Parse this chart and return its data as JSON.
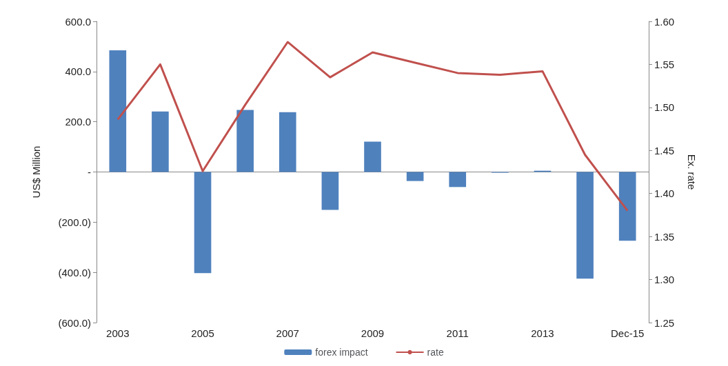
{
  "chart_data": {
    "type": "bar",
    "ylabel": "US$ Million",
    "y2label": "Ex. rate",
    "categories": [
      "2003",
      null,
      "2005",
      null,
      "2007",
      null,
      "2009",
      null,
      "2011",
      null,
      "2013",
      null,
      "Dec-15"
    ],
    "series": [
      {
        "name": "forex impact",
        "color": "#4f81bd",
        "values": [
          485,
          241,
          -403,
          247,
          238,
          -151,
          121,
          -36,
          -60,
          -3,
          5,
          -425,
          -274
        ]
      },
      {
        "name": "rate",
        "type": "line",
        "axis": "y2",
        "color": "#c0504d",
        "marker": "none",
        "values": [
          1.486,
          1.55,
          1.426,
          1.503,
          1.576,
          1.535,
          1.564,
          1.552,
          1.54,
          1.538,
          1.542,
          1.445,
          1.38
        ]
      }
    ],
    "ylim": [
      -600,
      600
    ],
    "yticks": [
      {
        "value": -600,
        "label": "(600.0)"
      },
      {
        "value": -400,
        "label": "(400.0)"
      },
      {
        "value": -200,
        "label": "(200.0)"
      },
      {
        "value": 0,
        "label": "-"
      },
      {
        "value": 200,
        "label": "200.0"
      },
      {
        "value": 400,
        "label": "400.0"
      },
      {
        "value": 600,
        "label": "600.0"
      }
    ],
    "y2lim": [
      1.25,
      1.6
    ],
    "y2ticks": [
      {
        "value": 1.25,
        "label": "1.25"
      },
      {
        "value": 1.3,
        "label": "1.30"
      },
      {
        "value": 1.35,
        "label": "1.35"
      },
      {
        "value": 1.4,
        "label": "1.40"
      },
      {
        "value": 1.45,
        "label": "1.45"
      },
      {
        "value": 1.5,
        "label": "1.50"
      },
      {
        "value": 1.55,
        "label": "1.55"
      },
      {
        "value": 1.6,
        "label": "1.60"
      }
    ],
    "legend": "bottom"
  }
}
